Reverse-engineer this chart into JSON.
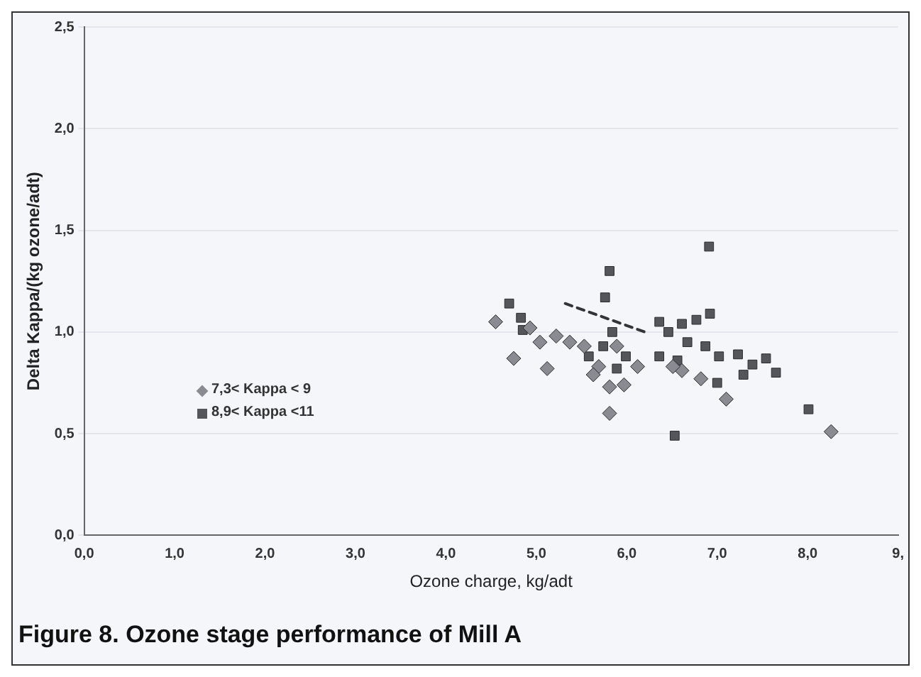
{
  "chart_data": {
    "type": "scatter",
    "title": "Figure 8. Ozone stage performance of Mill A",
    "xlabel": "Ozone charge, kg/adt",
    "ylabel": "Delta Kappa/(kg ozone/adt)",
    "xlim": [
      0,
      9
    ],
    "xticks": [
      {
        "value": 0,
        "label": "0,0"
      },
      {
        "value": 1,
        "label": "1,0"
      },
      {
        "value": 2,
        "label": "2,0"
      },
      {
        "value": 3,
        "label": "3,0"
      },
      {
        "value": 4,
        "label": "4,0"
      },
      {
        "value": 5,
        "label": "5,0"
      },
      {
        "value": 6,
        "label": "6,0"
      },
      {
        "value": 7,
        "label": "7,0"
      },
      {
        "value": 8,
        "label": "8,0"
      },
      {
        "value": 9,
        "label": "9,"
      }
    ],
    "ylim": [
      0,
      2.5
    ],
    "yticks": [
      {
        "value": 0,
        "label": "0,0"
      },
      {
        "value": 0.5,
        "label": "0,5"
      },
      {
        "value": 1,
        "label": "1,0"
      },
      {
        "value": 1.5,
        "label": "1,5"
      },
      {
        "value": 2,
        "label": "2,0"
      },
      {
        "value": 2.5,
        "label": "2,5"
      }
    ],
    "grid": "y",
    "legend": "center left",
    "series": [
      {
        "name": "7,3< Kappa < 9",
        "color": "#8a8a92",
        "marker": "diamond",
        "x": [
          4.55,
          4.75,
          5.12,
          5.04,
          5.22,
          5.37,
          5.53,
          5.69,
          5.81,
          5.81,
          5.97,
          6.12,
          7.1,
          6.61,
          6.82,
          6.51,
          4.93,
          5.63,
          8.26,
          5.89
        ],
        "values": [
          1.05,
          0.87,
          0.82,
          0.95,
          0.98,
          0.95,
          0.93,
          0.83,
          0.73,
          0.6,
          0.74,
          0.83,
          0.67,
          0.81,
          0.77,
          0.83,
          1.02,
          0.79,
          0.51,
          0.93
        ]
      },
      {
        "name": "8,9< Kappa <11",
        "color": "#55555c",
        "marker": "square",
        "x": [
          6.91,
          5.81,
          5.76,
          4.7,
          4.83,
          6.36,
          6.92,
          6.61,
          6.77,
          5.84,
          5.74,
          5.99,
          6.36,
          7.23,
          7.54,
          7.65,
          7.29,
          7.0,
          8.01,
          6.53,
          6.67,
          6.87,
          7.02,
          6.56,
          5.58,
          5.89,
          4.85,
          7.39,
          6.46
        ],
        "values": [
          1.42,
          1.3,
          1.17,
          1.14,
          1.07,
          1.05,
          1.09,
          1.04,
          1.06,
          1.0,
          0.93,
          0.88,
          0.88,
          0.89,
          0.87,
          0.8,
          0.79,
          0.75,
          0.62,
          0.49,
          0.95,
          0.93,
          0.88,
          0.86,
          0.88,
          0.82,
          1.01,
          0.84,
          1.0
        ]
      },
      {
        "type": "line",
        "color": "#333338",
        "line_style": "dashed",
        "marker": "none",
        "x": [
          5.32,
          6.2
        ],
        "values": [
          1.14,
          1.0
        ]
      }
    ]
  }
}
